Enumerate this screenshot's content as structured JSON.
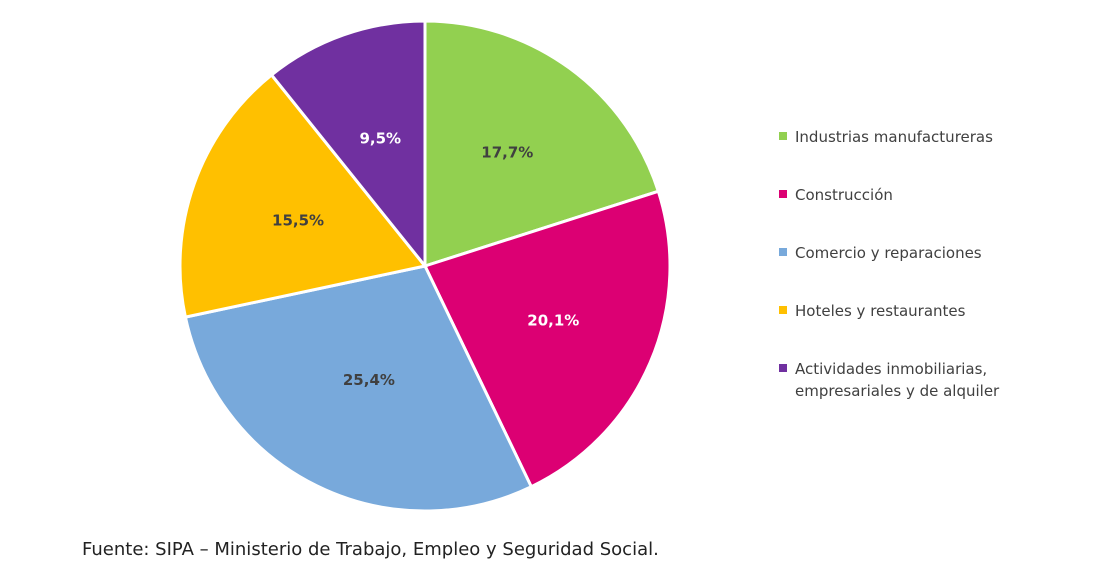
{
  "chart_data": {
    "type": "pie",
    "title": "",
    "slices": [
      {
        "label": "Industrias manufactureras",
        "value": 17.7,
        "display": "17,7%",
        "color": "#92d050",
        "label_color": "#404040"
      },
      {
        "label": "Construcción",
        "value": 20.1,
        "display": "20,1%",
        "color": "#dc0073",
        "label_color": "#ffffff"
      },
      {
        "label": "Comercio y reparaciones",
        "value": 25.4,
        "display": "25,4%",
        "color": "#78a9db",
        "label_color": "#404040"
      },
      {
        "label": "Hoteles y restaurantes",
        "value": 15.5,
        "display": "15,5%",
        "color": "#ffc000",
        "label_color": "#404040"
      },
      {
        "label": "Actividades inmobiliarias, empresariales y de alquiler",
        "value": 9.5,
        "display": "9,5%",
        "color": "#7030a0",
        "label_color": "#ffffff"
      }
    ],
    "legend": {
      "position": "right",
      "items": [
        [
          "Industrias manufactureras"
        ],
        [
          "Construcción"
        ],
        [
          "Comercio y reparaciones"
        ],
        [
          "Hoteles y restaurantes"
        ],
        [
          "Actividades inmobiliarias,",
          "empresariales y de alquiler"
        ]
      ]
    }
  },
  "source": "Fuente: SIPA – Ministerio de Trabajo, Empleo y Seguridad Social."
}
